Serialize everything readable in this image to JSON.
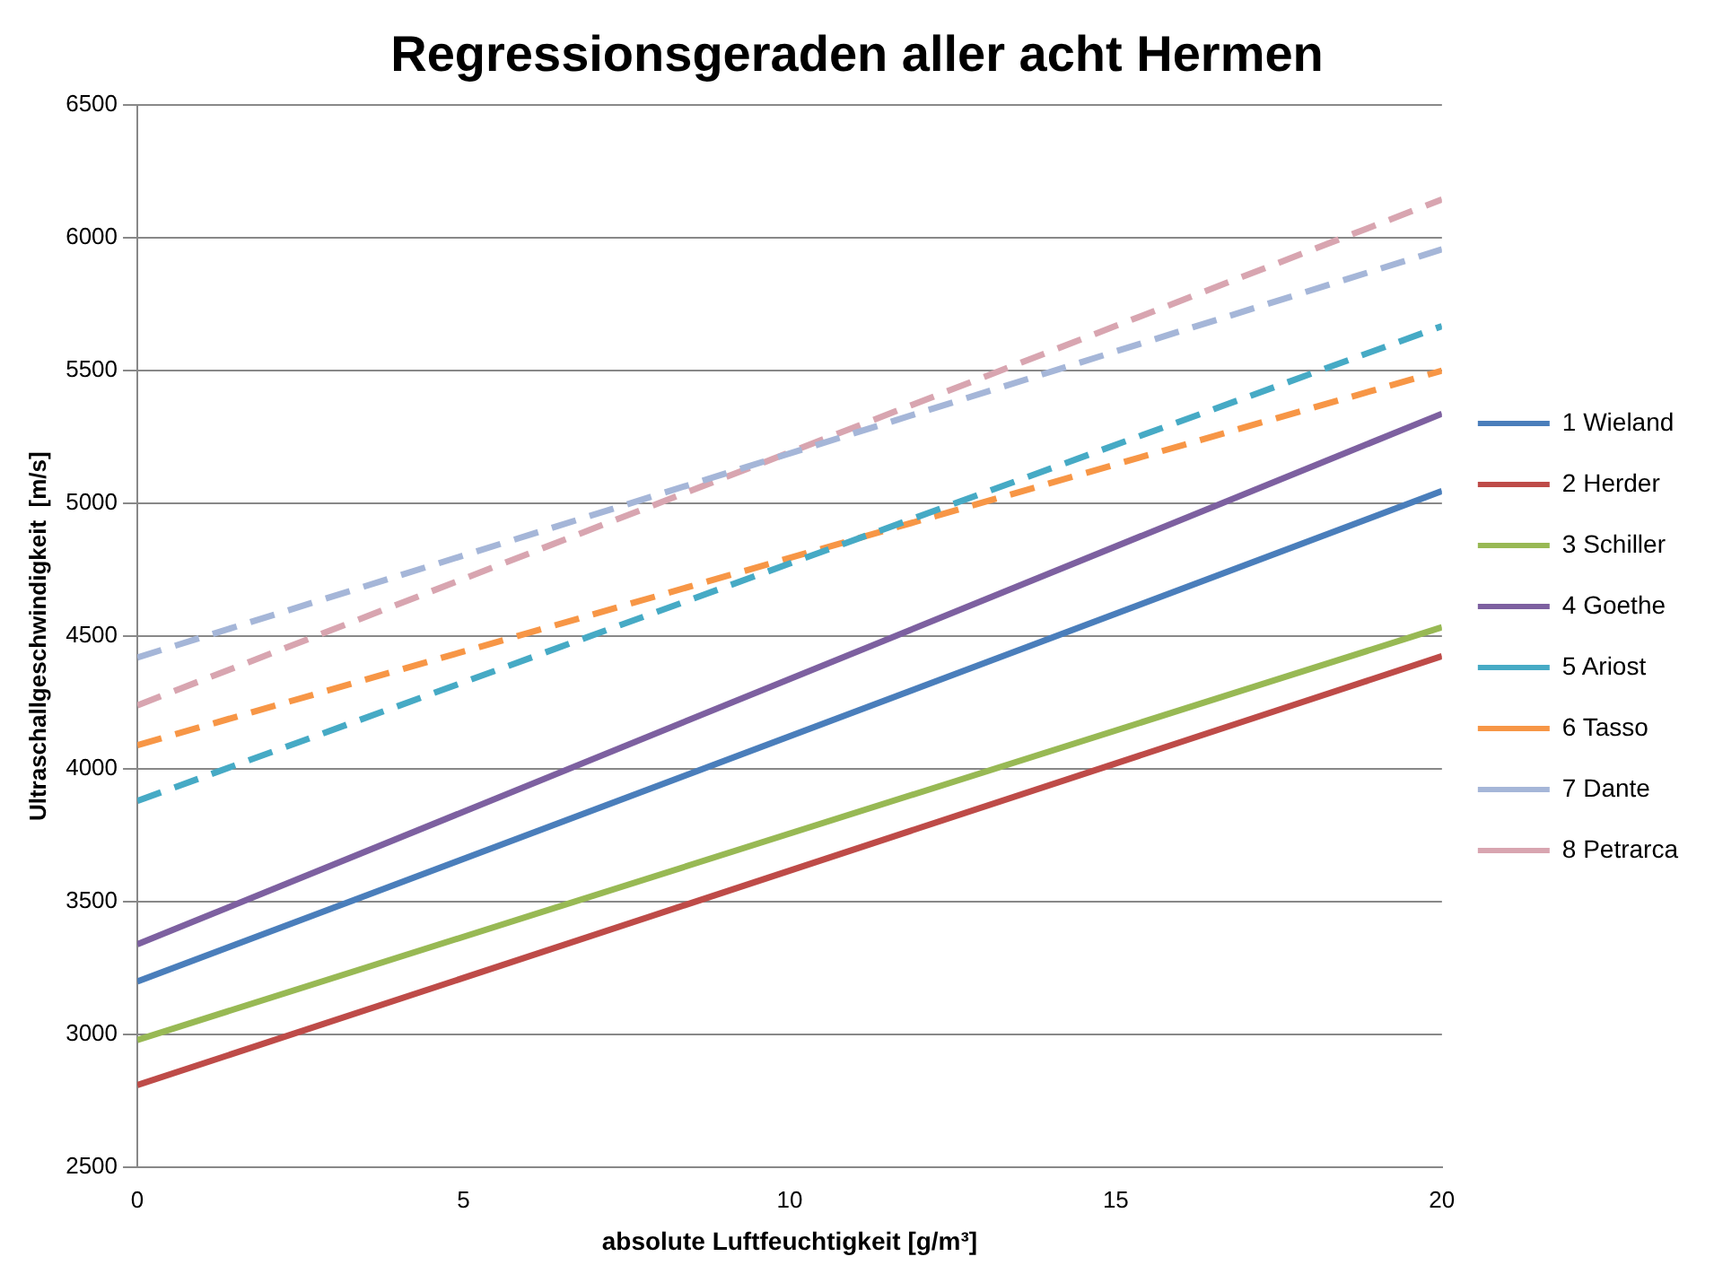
{
  "chart_data": {
    "type": "line",
    "title": "Regressionsgeraden aller acht Hermen",
    "xlabel": "absolute Luftfeuchtigkeit [g/m³]",
    "ylabel": "Ultraschallgeschwindigkeit  [m/s]",
    "x": [
      0,
      20
    ],
    "xlim": [
      0,
      20
    ],
    "xticks": [
      0,
      5,
      10,
      15,
      20
    ],
    "ylim": [
      2500,
      6500
    ],
    "yticks": [
      2500,
      3000,
      3500,
      4000,
      4500,
      5000,
      5500,
      6000,
      6500
    ],
    "grid": "y",
    "legend": "right",
    "marker": "none",
    "series": [
      {
        "name": "1 Wieland",
        "color": "#4a7ebb",
        "values": [
          3200,
          5047
        ],
        "line_style": "solid"
      },
      {
        "name": "2 Herder",
        "color": "#be4b48",
        "values": [
          2810,
          4425
        ],
        "line_style": "solid"
      },
      {
        "name": "3 Schiller",
        "color": "#98b954",
        "values": [
          2980,
          4534
        ],
        "line_style": "solid"
      },
      {
        "name": "4 Goethe",
        "color": "#7d60a0",
        "values": [
          3340,
          5338
        ],
        "line_style": "solid"
      },
      {
        "name": "5 Ariost",
        "color": "#46aac5",
        "values": [
          3880,
          5668
        ],
        "line_style": "dashed"
      },
      {
        "name": "6 Tasso",
        "color": "#f79646",
        "values": [
          4090,
          5500
        ],
        "line_style": "dashed"
      },
      {
        "name": "7 Dante",
        "color": "#a5b6d8",
        "values": [
          4420,
          5957
        ],
        "line_style": "dashed"
      },
      {
        "name": "8 Petrarca",
        "color": "#d8a5b0",
        "values": [
          4240,
          6145
        ],
        "line_style": "dashed"
      }
    ]
  }
}
